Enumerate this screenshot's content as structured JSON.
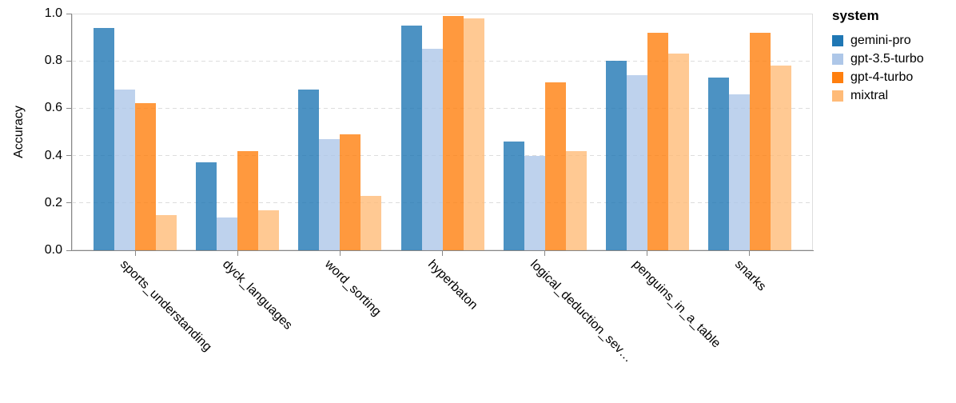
{
  "chart_data": {
    "type": "bar",
    "title": "",
    "xlabel": "",
    "ylabel": "Accuracy",
    "ylim": [
      0.0,
      1.0
    ],
    "yticks": [
      0.0,
      0.2,
      0.4,
      0.6,
      0.8,
      1.0
    ],
    "grid": "dashed-horizontal",
    "legend_title": "system",
    "legend_position": "top-right",
    "bar_fill_opacity": 0.8,
    "categories": [
      "sports_understanding",
      "dyck_languages",
      "word_sorting",
      "hyperbaton",
      "logical_deduction_sev…",
      "penguins_in_a_table",
      "snarks"
    ],
    "series": [
      {
        "name": "gemini-pro",
        "color": "#1f77b4",
        "values": [
          0.94,
          0.37,
          0.68,
          0.95,
          0.46,
          0.8,
          0.73
        ]
      },
      {
        "name": "gpt-3.5-turbo",
        "color": "#aec7e8",
        "values": [
          0.68,
          0.14,
          0.47,
          0.85,
          0.4,
          0.74,
          0.66
        ]
      },
      {
        "name": "gpt-4-turbo",
        "color": "#ff7f0e",
        "values": [
          0.62,
          0.42,
          0.49,
          0.99,
          0.71,
          0.92,
          0.92
        ]
      },
      {
        "name": "mixtral",
        "color": "#ffbb78",
        "values": [
          0.15,
          0.17,
          0.23,
          0.98,
          0.42,
          0.83,
          0.78
        ]
      }
    ],
    "colors": {
      "axis_domain": "#888888",
      "gridline": "#dddddd",
      "frame": "#dddddd",
      "text": "#000000"
    }
  }
}
